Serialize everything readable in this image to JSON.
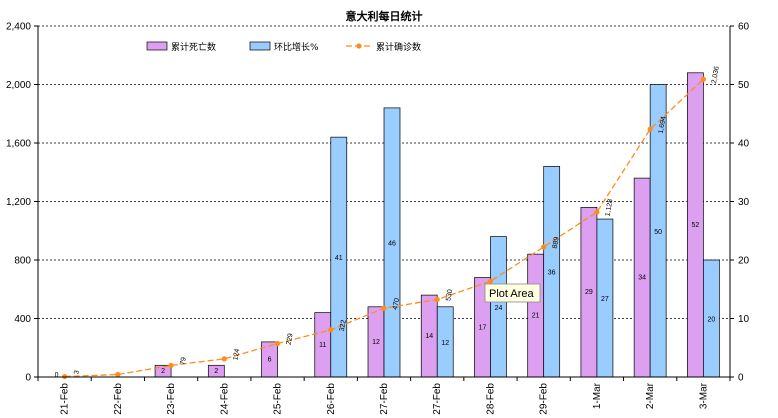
{
  "chart_data": {
    "type": "bar",
    "title": "意大利每日统计",
    "categories": [
      "21-Feb",
      "22-Feb",
      "23-Feb",
      "24-Feb",
      "25-Feb",
      "26-Feb",
      "27-Feb",
      "27-Feb",
      "28-Feb",
      "29-Feb",
      "1-Mar",
      "2-Mar",
      "3-Mar"
    ],
    "y_left": {
      "min": 0,
      "max": 2400,
      "ticks": [
        "0",
        "400",
        "800",
        "1,200",
        "1,600",
        "2,000",
        "2,400"
      ],
      "tick_values": [
        0,
        400,
        800,
        1200,
        1600,
        2000,
        2400
      ]
    },
    "y_right": {
      "min": 0,
      "max": 60,
      "ticks": [
        "0",
        "10",
        "20",
        "30",
        "40",
        "50",
        "60"
      ],
      "tick_values": [
        0,
        10,
        20,
        30,
        40,
        50,
        60
      ]
    },
    "gridlines": true,
    "legend_position": "top",
    "series": [
      {
        "name": "累计死亡数",
        "kind": "bar",
        "axis": "right",
        "color": "#dda0f0",
        "values": [
          0,
          0,
          2,
          2,
          6,
          11,
          12,
          14,
          17,
          21,
          29,
          34,
          52
        ],
        "labels": [
          "0",
          "",
          "2",
          "2",
          "6",
          "11",
          "12",
          "14",
          "17",
          "21",
          "29",
          "34",
          "52"
        ]
      },
      {
        "name": "环比增长%",
        "kind": "bar",
        "axis": "right",
        "color": "#99ccff",
        "values": [
          null,
          null,
          null,
          null,
          null,
          41,
          46,
          12,
          24,
          36,
          27,
          50,
          20
        ],
        "labels": [
          "",
          "",
          "",
          "",
          "",
          "41",
          "46",
          "12",
          "24",
          "36",
          "27",
          "50",
          "20"
        ]
      },
      {
        "name": "累计确诊数",
        "kind": "line",
        "axis": "left",
        "color": "#ff8c1a",
        "values": [
          3,
          17,
          79,
          124,
          229,
          322,
          470,
          530,
          655,
          889,
          1128,
          1694,
          2036
        ],
        "labels": [
          "3",
          "",
          "79",
          "124",
          "229",
          "322",
          "470",
          "530",
          "",
          "889",
          "1,128",
          "1,694",
          "2,036"
        ]
      }
    ],
    "annotation": "Plot Area"
  }
}
